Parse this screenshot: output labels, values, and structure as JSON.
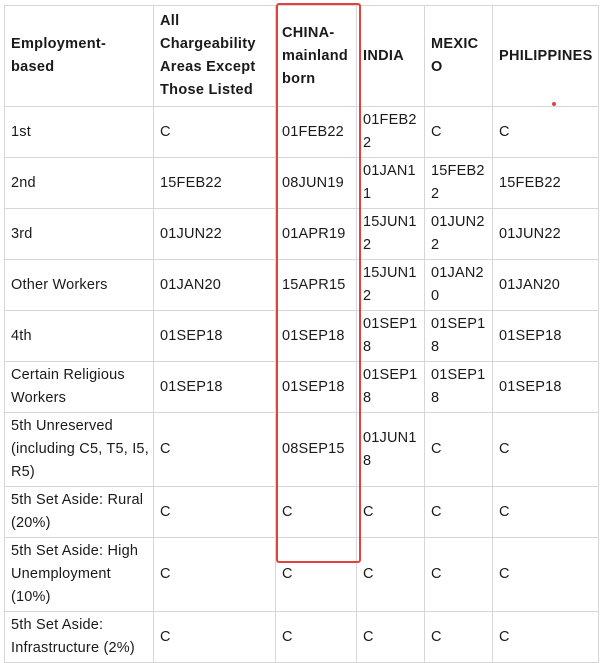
{
  "table": {
    "headers": [
      "Employment-based",
      "All Chargeability Areas Except Those Listed",
      "CHINA-mainland born",
      "INDIA",
      "MEXICO",
      "PHILIPPINES"
    ],
    "rows": [
      [
        "1st",
        "C",
        "01FEB22",
        "01FEB22",
        "C",
        "C"
      ],
      [
        "2nd",
        "15FEB22",
        "08JUN19",
        "01JAN11",
        "15FEB22",
        "15FEB22"
      ],
      [
        "3rd",
        "01JUN22",
        "01APR19",
        "15JUN12",
        "01JUN22",
        "01JUN22"
      ],
      [
        "Other Workers",
        "01JAN20",
        "15APR15",
        "15JUN12",
        "01JAN20",
        "01JAN20"
      ],
      [
        "4th",
        "01SEP18",
        "01SEP18",
        "01SEP18",
        "01SEP18",
        "01SEP18"
      ],
      [
        "Certain Religious Workers",
        "01SEP18",
        "01SEP18",
        "01SEP18",
        "01SEP18",
        "01SEP18"
      ],
      [
        "5th Unreserved (including C5, T5, I5, R5)",
        "C",
        "08SEP15",
        "01JUN18",
        "C",
        "C"
      ],
      [
        "5th Set Aside: Rural (20%)",
        "C",
        "C",
        "C",
        "C",
        "C"
      ],
      [
        "5th Set Aside: High Unemployment (10%)",
        "C",
        "C",
        "C",
        "C",
        "C"
      ],
      [
        "5th Set Aside: Infrastructure (2%)",
        "C",
        "C",
        "C",
        "C",
        "C"
      ]
    ]
  },
  "highlight": {
    "column": "CHINA-mainland born",
    "color": "#e0433b"
  }
}
